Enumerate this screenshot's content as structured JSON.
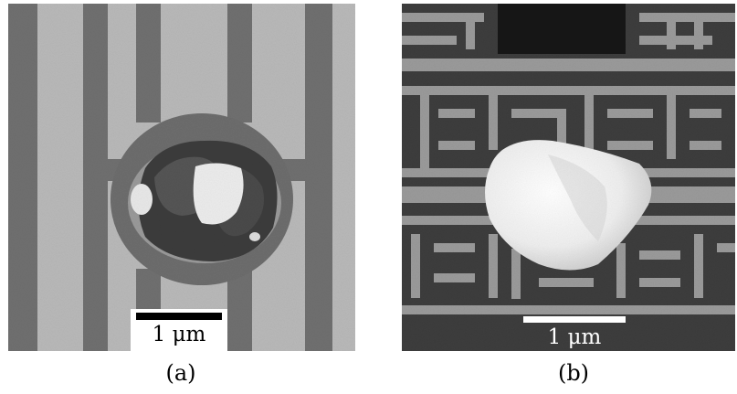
{
  "panels": [
    {
      "id": "a",
      "caption": "(a)",
      "scale_label": "1 μm"
    },
    {
      "id": "b",
      "caption": "(b)",
      "scale_label": "1 μm"
    }
  ],
  "colors": {
    "panel_a_background": "#b9b9b9",
    "panel_a_lines": "#707070",
    "panel_b_background": "#3d3d3d",
    "panel_b_traces": "#9a9a9a",
    "particle": "#efefef"
  }
}
